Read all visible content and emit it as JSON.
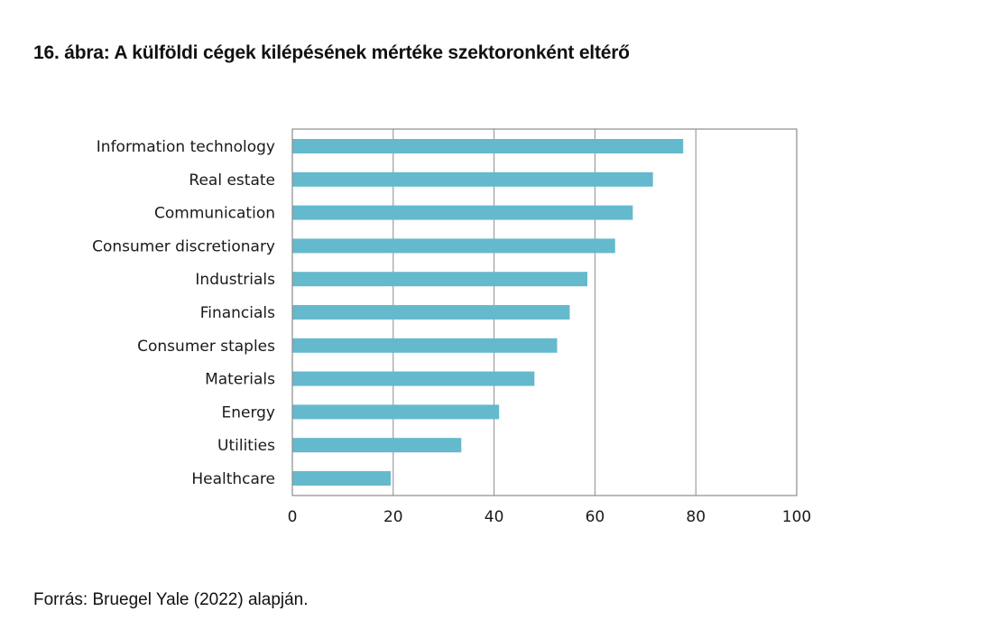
{
  "figure": {
    "title": "16. ábra: A külföldi cégek kilépésének mértéke szektoronként eltérő",
    "source": "Forrás: Bruegel Yale (2022) alapján."
  },
  "chart_data": {
    "type": "bar",
    "orientation": "horizontal",
    "categories": [
      "Information technology",
      "Real estate",
      "Communication",
      "Consumer discretionary",
      "Industrials",
      "Financials",
      "Consumer staples",
      "Materials",
      "Energy",
      "Utilities",
      "Healthcare"
    ],
    "values": [
      77.5,
      71.5,
      67.5,
      64,
      58.5,
      55,
      52.5,
      48,
      41,
      33.5,
      19.5
    ],
    "xlim": [
      0,
      100
    ],
    "xticks": [
      0,
      20,
      40,
      60,
      80,
      100
    ],
    "grid": "vertical",
    "bar_color": "#64b9cd",
    "grid_color": "#8c8c8c",
    "frame_color": "#8c8c8c"
  }
}
